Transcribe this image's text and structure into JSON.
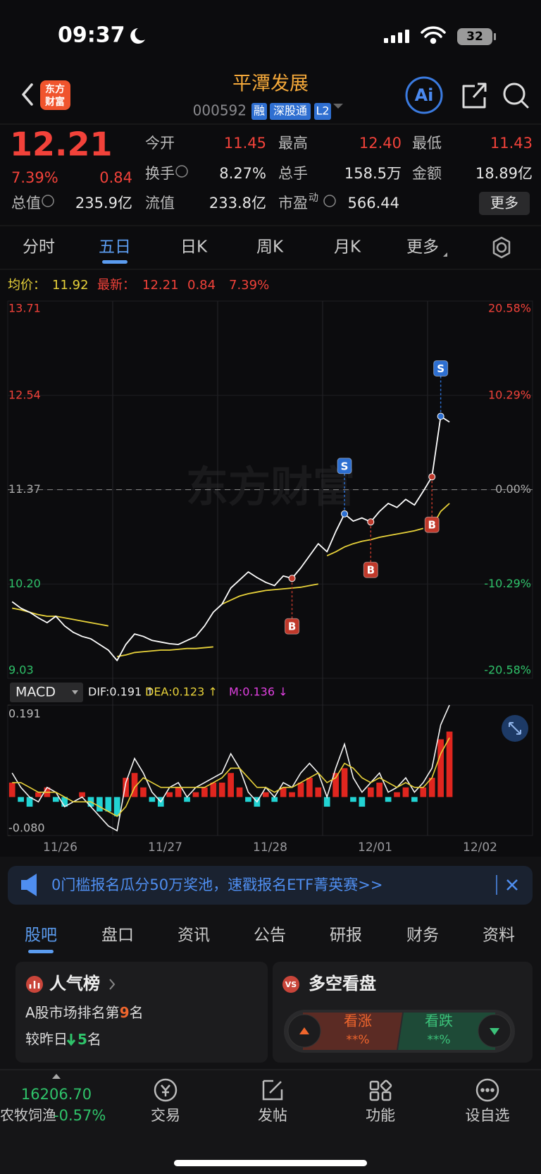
{
  "status_bar": {
    "time": "09:37",
    "battery": "32"
  },
  "header": {
    "logo": [
      "东方",
      "财富"
    ],
    "title": "平潭发展",
    "code": "000592",
    "tags": [
      "融",
      "深股通",
      "L2"
    ],
    "ai_button": "Ai"
  },
  "quote": {
    "price": "12.21",
    "change_pct": "7.39%",
    "change": "0.84",
    "stats": [
      {
        "label": "今开",
        "value": "11.45"
      },
      {
        "label": "最高",
        "value": "12.40"
      },
      {
        "label": "最低",
        "value": "11.43"
      },
      {
        "label": "换手",
        "value": "8.27%"
      },
      {
        "label": "总手",
        "value": "158.5万"
      },
      {
        "label": "金额",
        "value": "18.89亿"
      },
      {
        "label": "总值",
        "value": "235.9亿"
      },
      {
        "label": "流值",
        "value": "233.8亿"
      },
      {
        "label": "市盈",
        "value": "566.44"
      }
    ],
    "pe_sup": "动",
    "more": "更多"
  },
  "period_tabs": {
    "items": [
      "分时",
      "五日",
      "日K",
      "周K",
      "月K",
      "更多"
    ],
    "active": 1
  },
  "five_day_chart": {
    "type": "line",
    "legend": {
      "avg_label": "均价：",
      "avg": "11.92",
      "latest_label": "最新：",
      "latest": "12.21",
      "change": "0.84",
      "change_pct": "7.39%"
    },
    "watermark": "东方财富",
    "categories": [
      "11/26",
      "11/27",
      "11/28",
      "12/01",
      "12/02"
    ],
    "ylim": [
      9.03,
      13.71
    ],
    "yticks": [
      13.71,
      12.54,
      11.37,
      {
        "value": 10.2,
        "label": "10.20"
      },
      9.03
    ],
    "y2lim": [
      -20.58,
      20.58
    ],
    "y2ticks": [
      {
        "value": 20.58,
        "label": "20.58%"
      },
      {
        "value": 10.29,
        "label": "10.29%"
      },
      {
        "value": 0,
        "label": "0.00%"
      },
      {
        "value": -10.29,
        "label": "-10.29%"
      },
      {
        "value": -20.58,
        "label": "-20.58%"
      }
    ],
    "series": [
      {
        "name": "最新",
        "color": "#ffffff",
        "values": [
          9.98,
          9.9,
          9.85,
          9.78,
          9.72,
          9.8,
          9.68,
          9.6,
          9.55,
          9.52,
          9.45,
          9.38,
          9.25,
          9.45,
          9.58,
          9.55,
          9.5,
          9.48,
          9.46,
          9.45,
          9.5,
          9.55,
          9.68,
          9.85,
          9.95,
          10.15,
          10.25,
          10.35,
          10.28,
          10.22,
          10.18,
          10.3,
          10.27,
          10.4,
          10.55,
          10.7,
          10.6,
          10.85,
          11.07,
          10.98,
          11.02,
          10.97,
          11.1,
          11.2,
          11.15,
          11.25,
          11.18,
          11.35,
          11.53,
          12.28,
          12.21
        ]
      },
      {
        "name": "均价",
        "color": "#e8d23a",
        "values": [
          9.9,
          9.88,
          9.85,
          9.82,
          9.8,
          9.8,
          9.78,
          9.76,
          9.74,
          9.72,
          9.7,
          9.68,
          9.3,
          9.32,
          9.35,
          9.36,
          9.37,
          9.38,
          9.38,
          9.39,
          9.4,
          9.4,
          9.41,
          9.42,
          9.95,
          10.0,
          10.05,
          10.08,
          10.1,
          10.12,
          10.13,
          10.14,
          10.15,
          10.16,
          10.18,
          10.2,
          10.55,
          10.6,
          10.66,
          10.7,
          10.73,
          10.75,
          10.78,
          10.8,
          10.82,
          10.84,
          10.86,
          10.89,
          10.91,
          11.1,
          11.2
        ]
      }
    ],
    "trades": [
      {
        "label": "B",
        "price": 10.27
      },
      {
        "label": "S",
        "price": 11.07
      },
      {
        "label": "B",
        "price": 10.97
      },
      {
        "label": "B",
        "price": 11.53
      },
      {
        "label": "S",
        "price": 12.28
      }
    ]
  },
  "macd": {
    "type": "bar",
    "selector": "MACD",
    "labels": [
      "DIF:0.191 ↑",
      "DEA:0.123 ↑",
      "M:0.136 ↓"
    ],
    "ylim": [
      -0.08,
      0.191
    ],
    "yticks": [
      0.191,
      {
        "value": -0.08,
        "label": "-0.080"
      }
    ],
    "m": [
      0.03,
      -0.01,
      -0.02,
      0.01,
      0.02,
      -0.01,
      -0.02,
      0.0,
      0.01,
      -0.02,
      -0.03,
      -0.03,
      -0.04,
      0.04,
      0.05,
      0.02,
      -0.01,
      -0.02,
      0.01,
      0.02,
      -0.01,
      0.01,
      0.02,
      0.03,
      0.03,
      0.05,
      0.02,
      -0.01,
      -0.02,
      0.01,
      -0.01,
      0.02,
      0.01,
      0.03,
      0.04,
      0.02,
      -0.02,
      0.05,
      0.06,
      -0.01,
      -0.02,
      0.02,
      0.03,
      -0.01,
      0.01,
      0.02,
      -0.01,
      0.02,
      0.04,
      0.12,
      0.136
    ],
    "dif": [
      0.05,
      0.02,
      0.0,
      -0.01,
      0.02,
      0.01,
      -0.02,
      -0.01,
      0.0,
      -0.02,
      -0.04,
      -0.06,
      -0.07,
      0.03,
      0.08,
      0.05,
      0.01,
      -0.01,
      0.02,
      0.03,
      0.0,
      0.02,
      0.03,
      0.04,
      0.05,
      0.09,
      0.06,
      0.01,
      -0.01,
      0.02,
      0.0,
      0.03,
      0.02,
      0.05,
      0.07,
      0.05,
      0.0,
      0.06,
      0.11,
      0.04,
      0.01,
      0.03,
      0.05,
      0.01,
      0.02,
      0.04,
      0.01,
      0.03,
      0.06,
      0.15,
      0.191
    ],
    "dea": [
      0.03,
      0.03,
      0.02,
      0.01,
      0.01,
      0.01,
      0.0,
      -0.01,
      -0.01,
      -0.01,
      -0.02,
      -0.03,
      -0.04,
      -0.02,
      0.02,
      0.04,
      0.03,
      0.02,
      0.02,
      0.02,
      0.02,
      0.02,
      0.02,
      0.03,
      0.04,
      0.06,
      0.06,
      0.04,
      0.02,
      0.02,
      0.01,
      0.02,
      0.02,
      0.03,
      0.04,
      0.05,
      0.03,
      0.04,
      0.07,
      0.06,
      0.04,
      0.03,
      0.04,
      0.03,
      0.02,
      0.03,
      0.02,
      0.02,
      0.04,
      0.09,
      0.123
    ]
  },
  "banner": {
    "text": "0门槛报名瓜分50万奖池，速戳报名ETF菁英赛>>"
  },
  "section_tabs": {
    "items": [
      "股吧",
      "盘口",
      "资讯",
      "公告",
      "研报",
      "财务",
      "资料"
    ],
    "active": 0
  },
  "cards": {
    "popularity": {
      "title": "人气榜",
      "rank_prefix": "A股市场排名第",
      "rank": "9",
      "rank_suffix": "名",
      "change_prefix": "较昨日",
      "change": "5",
      "change_suffix": "名"
    },
    "sentiment": {
      "icon": "VS",
      "title": "多空看盘",
      "up": "看涨",
      "up_pct": "**%",
      "down": "看跌",
      "down_pct": "**%"
    }
  },
  "bottom_bar": {
    "index_value": "16206.70",
    "index_name": "农牧饲渔",
    "index_change": "-0.57%",
    "nav": [
      "交易",
      "发帖",
      "功能",
      "设自选"
    ]
  }
}
